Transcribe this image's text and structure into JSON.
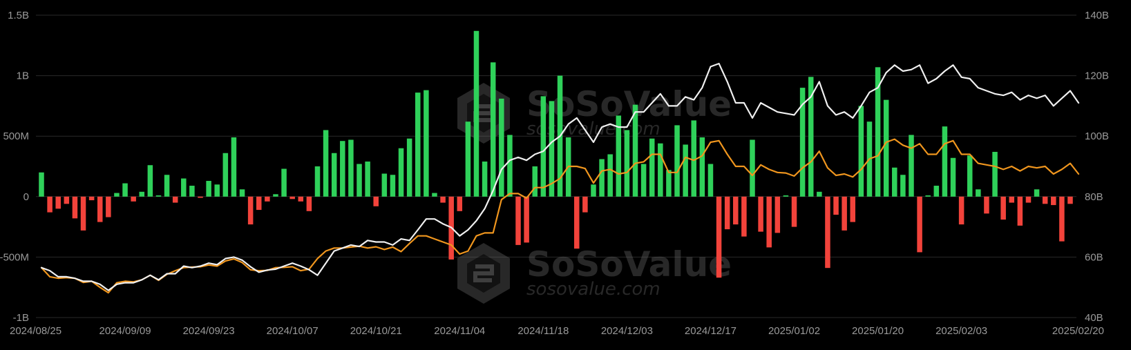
{
  "watermark": {
    "brand": "SoSoValue",
    "url": "sosovalue.com"
  },
  "colors": {
    "background": "#000000",
    "inflow": "#2fd15a",
    "outflow": "#f2433b",
    "total_net_assets_line": "#f0f0f0",
    "btc_price_line": "#f0961e",
    "grid": "#2a2a2a",
    "tick_label": "#9a9a9a"
  },
  "chart_data": {
    "type": "bar",
    "title": "",
    "xlabel": "",
    "ylabel": "",
    "ylim": [
      -1000000000,
      1500000000
    ],
    "y2lim": [
      40,
      140
    ],
    "y_ticks": [
      "-1B",
      "-500M",
      "0",
      "500M",
      "1B",
      "1.5B"
    ],
    "y_tick_values": [
      -1000000000,
      -500000000,
      0,
      500000000,
      1000000000,
      1500000000
    ],
    "y2_ticks": [
      "40B",
      "60B",
      "80B",
      "100B",
      "120B",
      "140B"
    ],
    "y2_tick_values": [
      40,
      60,
      80,
      100,
      120,
      140
    ],
    "x_ticks": [
      "2024/08/25",
      "2024/09/09",
      "2024/09/23",
      "2024/10/07",
      "2024/10/21",
      "2024/11/04",
      "2024/11/18",
      "2024/12/03",
      "2024/12/17",
      "2025/01/02",
      "2025/01/20",
      "2025/02/03",
      "2025/02/20"
    ],
    "x_tick_index": [
      0,
      10,
      20,
      30,
      40,
      50,
      60,
      70,
      80,
      90,
      100,
      110,
      120
    ],
    "grid": true,
    "legend": "none",
    "series": [
      {
        "type": "bar",
        "axis": "left",
        "values": [
          200,
          -130,
          -100,
          -60,
          -180,
          -280,
          -30,
          -210,
          -170,
          30,
          110,
          -40,
          40,
          260,
          10,
          180,
          -50,
          150,
          90,
          -10,
          130,
          100,
          360,
          490,
          60,
          -230,
          -110,
          -40,
          20,
          230,
          -20,
          -40,
          -120,
          250,
          550,
          360,
          460,
          470,
          270,
          290,
          -80,
          190,
          180,
          400,
          480,
          860,
          880,
          30,
          -50,
          -520,
          -120,
          620,
          1370,
          290,
          1110,
          810,
          510,
          -400,
          -380,
          250,
          830,
          790,
          1000,
          490,
          -430,
          -130,
          100,
          310,
          350,
          670,
          550,
          760,
          270,
          480,
          440,
          220,
          590,
          430,
          630,
          490,
          270,
          -670,
          -270,
          -230,
          -330,
          470,
          -290,
          -420,
          -300,
          10,
          -250,
          900,
          990,
          40,
          -590,
          -150,
          -280,
          -210,
          750,
          620,
          1070,
          800,
          240,
          180,
          510,
          -460,
          10,
          90,
          580,
          320,
          -230,
          340,
          60,
          -140,
          370,
          -190,
          -50,
          -240,
          -50,
          60,
          -60,
          -70,
          -370,
          -60
        ],
        "unit": "M"
      },
      {
        "type": "line",
        "axis": "right",
        "values": [
          56.5,
          55.5,
          53.5,
          53.5,
          53,
          52,
          52,
          51,
          49,
          51,
          51.5,
          51.5,
          52.5,
          54,
          52.5,
          54.5,
          54.5,
          57,
          56.5,
          57,
          58,
          57.5,
          59.5,
          60,
          59,
          56.8,
          55,
          55.7,
          56,
          57,
          58,
          57,
          55.8,
          54,
          58,
          62,
          63,
          64,
          63.5,
          65.5,
          65,
          65,
          64,
          66,
          65.5,
          69,
          72.6,
          72.6,
          71,
          69.8,
          67,
          69,
          72,
          76,
          82,
          89,
          92,
          93,
          92,
          94,
          95,
          98,
          100,
          104,
          106,
          102,
          98,
          103,
          104,
          103,
          103,
          108,
          108,
          111,
          114,
          110,
          110,
          113,
          112,
          116,
          123,
          124,
          118,
          111,
          111,
          106,
          111,
          109.5,
          108,
          107.5,
          107,
          110.5,
          113,
          118,
          110,
          107,
          108,
          106,
          110,
          114.5,
          116,
          121,
          123.5,
          121.5,
          122,
          123.5,
          117.5,
          119,
          121.5,
          123.5,
          119.5,
          119,
          116,
          115,
          114,
          113.5,
          114.5,
          112,
          113.5,
          112.5,
          113.5,
          110,
          112.5,
          115,
          111
        ],
        "unit": "B"
      },
      {
        "type": "line",
        "axis": "right",
        "values": [
          56.5,
          53.5,
          53,
          53.2,
          53,
          51.6,
          52,
          50,
          48.2,
          51.5,
          52,
          51.8,
          52.5,
          54,
          52.3,
          54.3,
          55.5,
          56.5,
          56.7,
          56.8,
          57.4,
          57,
          58.7,
          59.4,
          58.2,
          55.8,
          55.5,
          55.6,
          56.5,
          56.6,
          56.8,
          55.5,
          56,
          59.5,
          62,
          63,
          63,
          63.3,
          63.6,
          63,
          63.4,
          62.5,
          63.3,
          61.8,
          64.5,
          67,
          67,
          66,
          65,
          64,
          61,
          62,
          67,
          68,
          68,
          79,
          81,
          81,
          79.5,
          83,
          83,
          84.3,
          86,
          90,
          90,
          89.3,
          84.5,
          88.5,
          89,
          87.5,
          88,
          91,
          91.5,
          94,
          94,
          88,
          88,
          93,
          92,
          93.5,
          98,
          98.5,
          94,
          90,
          90,
          87,
          90.5,
          89,
          88,
          87.8,
          86.8,
          89.5,
          91.5,
          95,
          89.5,
          87,
          87.5,
          86.5,
          89,
          92.5,
          93.5,
          98,
          99,
          97,
          96,
          97.5,
          94,
          94,
          97.5,
          98.5,
          94,
          94,
          91,
          90.5,
          90,
          89,
          90,
          88.5,
          90,
          89.5,
          90,
          87.5,
          89,
          91,
          87.5
        ],
        "unit": "K"
      }
    ]
  }
}
